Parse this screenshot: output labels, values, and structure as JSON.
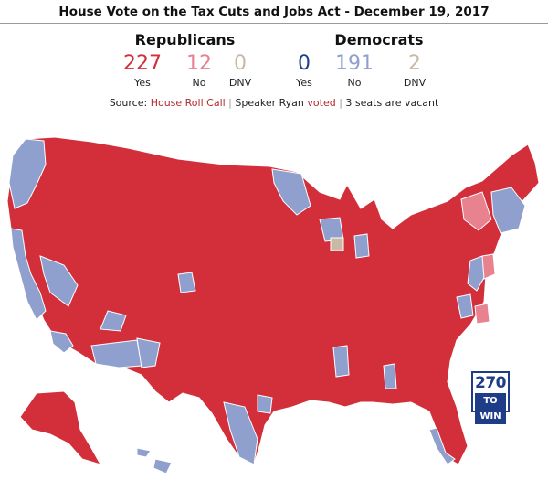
{
  "title": "House Vote on the Tax Cuts and Jobs Act - December 19, 2017",
  "republicans": {
    "name": "Republicans",
    "yes": "227",
    "yes_label": "Yes",
    "no": "12",
    "no_label": "No",
    "dnv": "0",
    "dnv_label": "DNV"
  },
  "democrats": {
    "name": "Democrats",
    "yes": "0",
    "yes_label": "Yes",
    "no": "191",
    "no_label": "No",
    "dnv": "2",
    "dnv_label": "DNV"
  },
  "source": {
    "prefix": "Source: ",
    "roll_call": "House Roll Call",
    "sep1": " | ",
    "ryan_text": "Speaker Ryan ",
    "ryan_link": "voted",
    "sep2": " | ",
    "vacant": "3 seats are vacant"
  },
  "logo": {
    "number": "270",
    "text": "TO WIN"
  },
  "colors": {
    "rep_yes": "#d22f3a",
    "rep_no": "#e8828f",
    "dnv": "#c8b9a5",
    "dem_yes": "#1c3f8a",
    "dem_no": "#8fa0cf",
    "link": "#b22a2f"
  }
}
